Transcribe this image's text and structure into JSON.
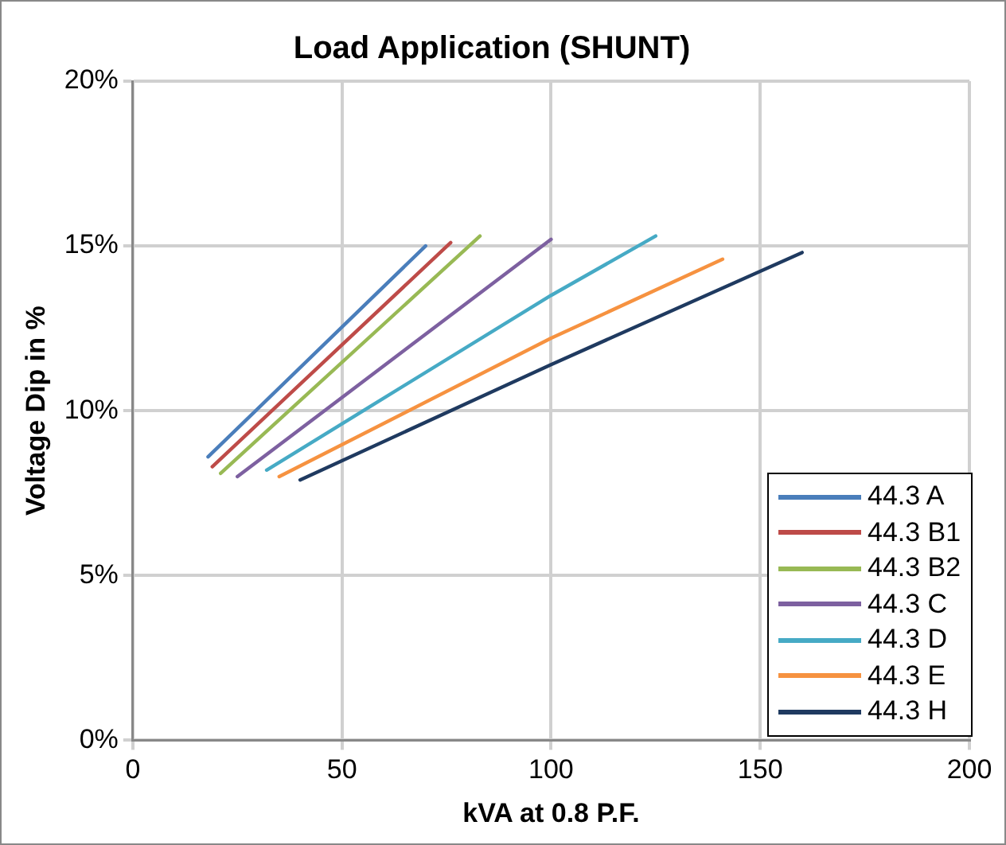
{
  "chart_data": {
    "type": "line",
    "title": "Load Application (SHUNT)",
    "xlabel": "kVA at 0.8 P.F.",
    "ylabel": "Voltage Dip in %",
    "xlim": [
      0,
      200
    ],
    "xticks": [
      0,
      50,
      100,
      150,
      200
    ],
    "ylim": [
      0,
      20
    ],
    "yticks": [
      {
        "value": 0,
        "label": "0%"
      },
      {
        "value": 5,
        "label": "5%"
      },
      {
        "value": 10,
        "label": "10%"
      },
      {
        "value": 15,
        "label": "15%"
      },
      {
        "value": 20,
        "label": "20%"
      }
    ],
    "grid": true,
    "legend": "bottom right",
    "marker": "none",
    "line_style": "solid",
    "series": [
      {
        "name": "44.3 A",
        "color": "#4a7ebb",
        "x": [
          18,
          70
        ],
        "values": [
          8.6,
          15.0
        ]
      },
      {
        "name": "44.3 B1",
        "color": "#be4b48",
        "x": [
          19,
          76
        ],
        "values": [
          8.3,
          15.1
        ]
      },
      {
        "name": "44.3 B2",
        "color": "#98b954",
        "x": [
          21,
          83
        ],
        "values": [
          8.1,
          15.3
        ]
      },
      {
        "name": "44.3 C",
        "color": "#7d60a0",
        "x": [
          25,
          100
        ],
        "values": [
          8.0,
          15.2
        ]
      },
      {
        "name": "44.3 D",
        "color": "#46aac5",
        "x": [
          32,
          100,
          125
        ],
        "values": [
          8.2,
          13.5,
          15.3
        ]
      },
      {
        "name": "44.3 E",
        "color": "#f69240",
        "x": [
          35,
          100,
          141
        ],
        "values": [
          8.0,
          12.2,
          14.6
        ]
      },
      {
        "name": "44.3 H",
        "color": "#1f3a60",
        "x": [
          40,
          100,
          160
        ],
        "values": [
          7.9,
          11.4,
          14.8
        ]
      }
    ]
  }
}
